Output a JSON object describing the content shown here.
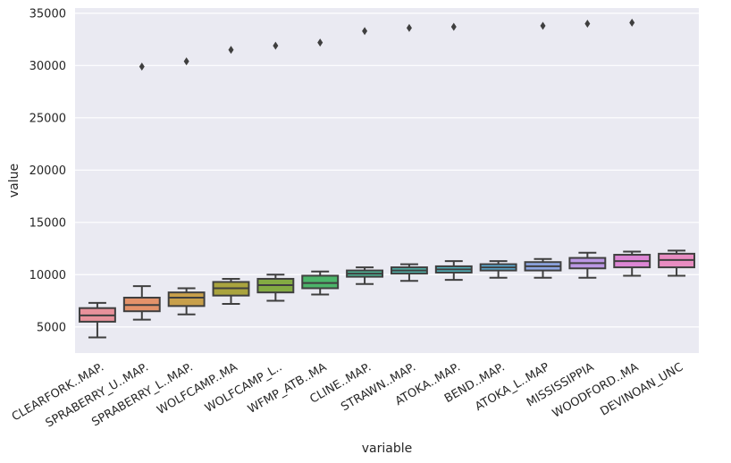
{
  "chart_data": {
    "type": "box",
    "xlabel": "variable",
    "ylabel": "value",
    "ylim": [
      2500,
      35500
    ],
    "yticks": [
      5000,
      10000,
      15000,
      20000,
      25000,
      30000,
      35000
    ],
    "grid": true,
    "style": "seaborn-darkgrid",
    "categories": [
      {
        "name": "CLEARFORK..MAP.",
        "whisker_low": 4000,
        "q1": 5500,
        "median": 6100,
        "q3": 6800,
        "whisker_high": 7300,
        "outliers": [],
        "color": "#e8919b"
      },
      {
        "name": "SPRABERRY_U..MAP.",
        "whisker_low": 5700,
        "q1": 6500,
        "median": 7100,
        "q3": 7800,
        "whisker_high": 8900,
        "outliers": [
          29900
        ],
        "color": "#e3926a"
      },
      {
        "name": "SPRABERRY_L..MAP.",
        "whisker_low": 6200,
        "q1": 7000,
        "median": 7800,
        "q3": 8300,
        "whisker_high": 8700,
        "outliers": [
          30400
        ],
        "color": "#c8a04b"
      },
      {
        "name": "WOLFCAMP..MA",
        "whisker_low": 7200,
        "q1": 8000,
        "median": 8700,
        "q3": 9300,
        "whisker_high": 9600,
        "outliers": [
          31500
        ],
        "color": "#aaa43e"
      },
      {
        "name": "WOLFCAMP_L..",
        "whisker_low": 7500,
        "q1": 8300,
        "median": 9000,
        "q3": 9600,
        "whisker_high": 10000,
        "outliers": [
          31900
        ],
        "color": "#83ab43"
      },
      {
        "name": "WFMP_ATB..MA",
        "whisker_low": 8100,
        "q1": 8700,
        "median": 9200,
        "q3": 9900,
        "whisker_high": 10300,
        "outliers": [
          32200
        ],
        "color": "#4cb56a"
      },
      {
        "name": "CLINE..MAP.",
        "whisker_low": 9100,
        "q1": 9800,
        "median": 10100,
        "q3": 10400,
        "whisker_high": 10700,
        "outliers": [
          33300
        ],
        "color": "#4eb394"
      },
      {
        "name": "STRAWN..MAP.",
        "whisker_low": 9400,
        "q1": 10100,
        "median": 10400,
        "q3": 10700,
        "whisker_high": 11000,
        "outliers": [
          33600
        ],
        "color": "#50b2a9"
      },
      {
        "name": "ATOKA..MAP.",
        "whisker_low": 9500,
        "q1": 10200,
        "median": 10500,
        "q3": 10800,
        "whisker_high": 11300,
        "outliers": [
          33700
        ],
        "color": "#53b3bd"
      },
      {
        "name": "BEND..MAP.",
        "whisker_low": 9700,
        "q1": 10400,
        "median": 10700,
        "q3": 11000,
        "whisker_high": 11300,
        "outliers": [],
        "color": "#5cadd6"
      },
      {
        "name": "ATOKA_L..MAP",
        "whisker_low": 9700,
        "q1": 10400,
        "median": 10800,
        "q3": 11200,
        "whisker_high": 11500,
        "outliers": [
          33800
        ],
        "color": "#8ea6e3"
      },
      {
        "name": "MISSISSIPPIA",
        "whisker_low": 9700,
        "q1": 10600,
        "median": 11100,
        "q3": 11600,
        "whisker_high": 12100,
        "outliers": [
          34000
        ],
        "color": "#bc98e4"
      },
      {
        "name": "WOODFORD..MA",
        "whisker_low": 9900,
        "q1": 10700,
        "median": 11300,
        "q3": 11900,
        "whisker_high": 12200,
        "outliers": [
          34100
        ],
        "color": "#dc86d4"
      },
      {
        "name": "DEVINOAN_UNC",
        "whisker_low": 9900,
        "q1": 10700,
        "median": 11400,
        "q3": 12000,
        "whisker_high": 12300,
        "outliers": [],
        "color": "#e88cc1"
      }
    ]
  }
}
